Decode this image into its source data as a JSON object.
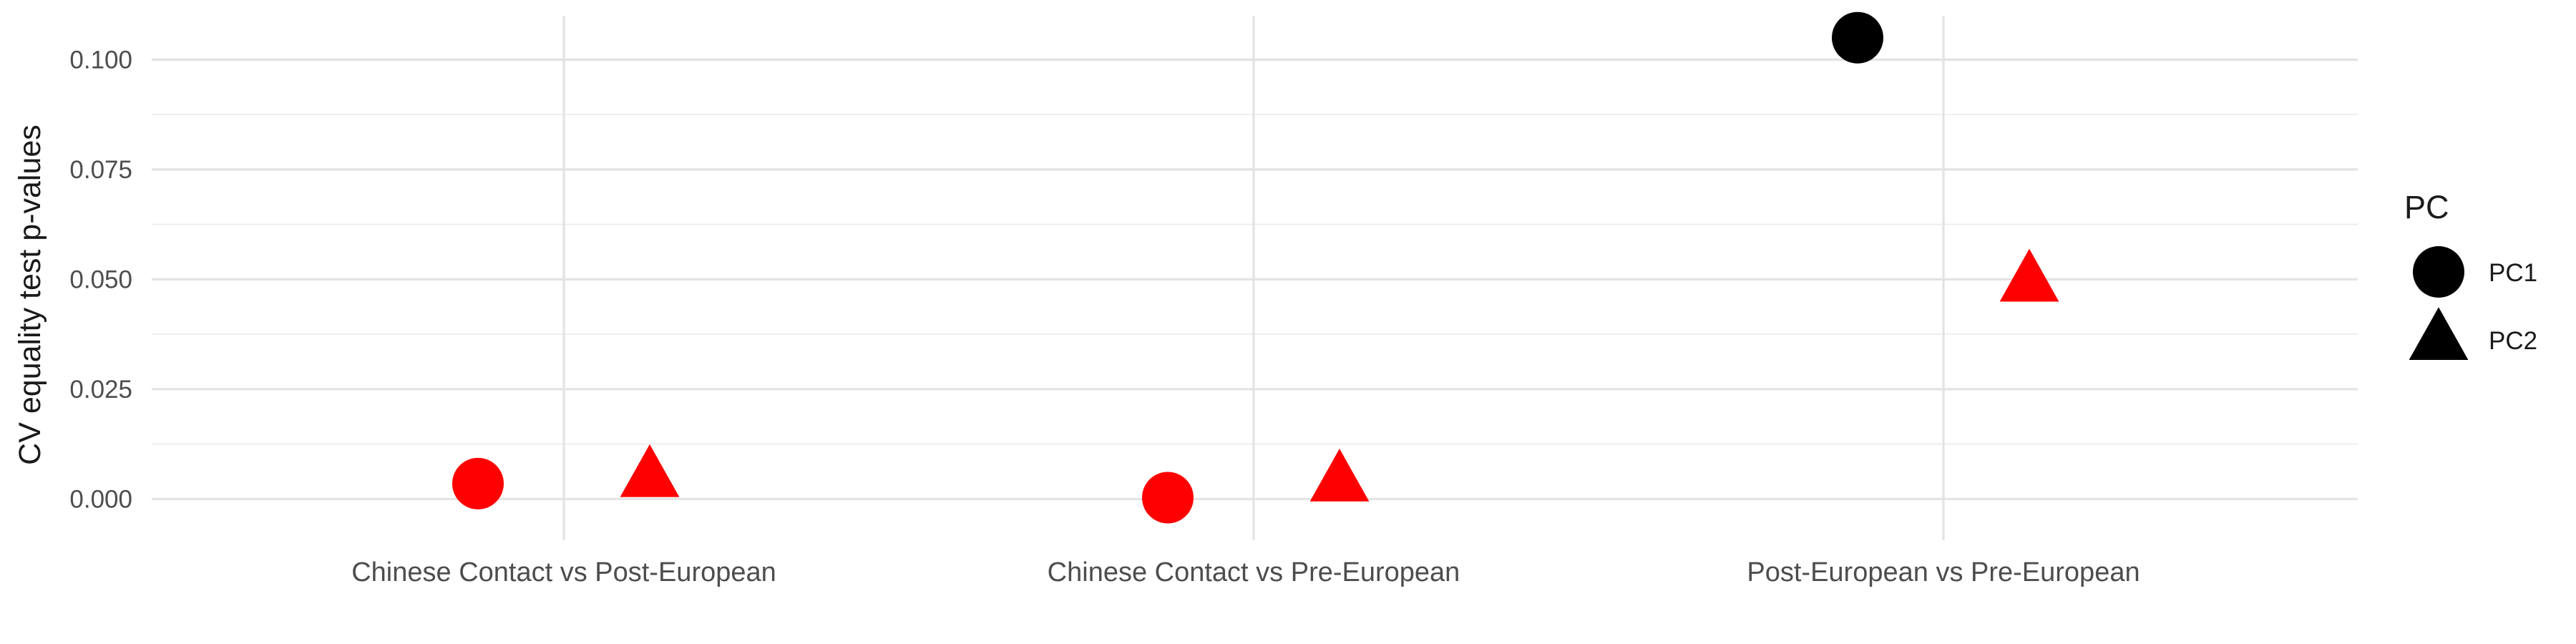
{
  "chart_data": {
    "type": "scatter",
    "title": "",
    "xlabel": "",
    "ylabel": "CV equality test p-values",
    "categories": [
      "Chinese Contact vs Post-European",
      "Chinese Contact vs Pre-European",
      "Post-European vs Pre-European"
    ],
    "ylim": [
      -0.005,
      0.11
    ],
    "yticks": [
      "0.000",
      "0.025",
      "0.050",
      "0.075",
      "0.100"
    ],
    "grid": true,
    "legend": {
      "title": "PC",
      "position": "right",
      "entries": [
        {
          "label": "PC1",
          "shape": "circle"
        },
        {
          "label": "PC2",
          "shape": "triangle"
        }
      ]
    },
    "series": [
      {
        "name": "PC1",
        "shape": "circle",
        "values": [
          0.0035,
          0.0003,
          0.105
        ],
        "colors": [
          "#ff0000",
          "#ff0000",
          "#000000"
        ]
      },
      {
        "name": "PC2",
        "shape": "triangle",
        "values": [
          0.005,
          0.004,
          0.0495
        ],
        "colors": [
          "#ff0000",
          "#ff0000",
          "#ff0000"
        ]
      }
    ]
  }
}
